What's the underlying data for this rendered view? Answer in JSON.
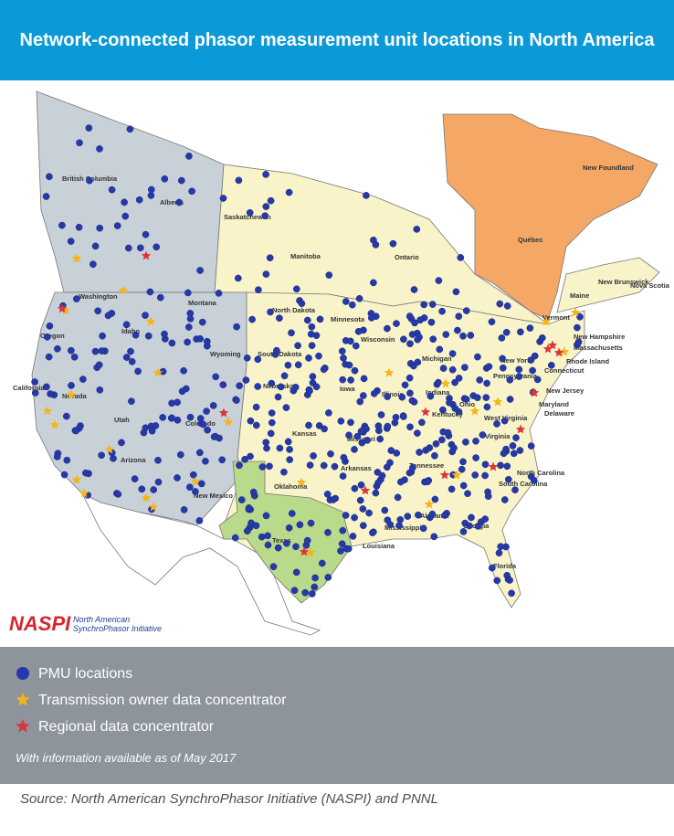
{
  "header": {
    "title": "Network-connected phasor measurement unit locations in North America"
  },
  "map": {
    "labels": [
      "British Columbia",
      "Alberta",
      "Saskatchewan",
      "Manitoba",
      "Ontario",
      "Québec",
      "New Foundland",
      "New Brunswick",
      "Nova Scotia",
      "Maine",
      "Washington",
      "Idaho",
      "Montana",
      "Oregon",
      "Wyoming",
      "North Dakota",
      "Minnesota",
      "Wisconsin",
      "South Dakota",
      "Michigan",
      "Nevada",
      "Utah",
      "Colorado",
      "Nebraska",
      "Iowa",
      "California",
      "Kansas",
      "Missouri",
      "Illinois",
      "Indiana",
      "Ohio",
      "Arizona",
      "New Mexico",
      "Oklahoma",
      "Arkansas",
      "Tennessee",
      "Kentucky",
      "Texas",
      "Louisiana",
      "Mississippi",
      "Alabama",
      "Georgia",
      "Florida",
      "North Carolina",
      "South Carolina",
      "Virginia",
      "West Virginia",
      "Pennsylvania",
      "New York",
      "Vermont",
      "New Hampshire",
      "Massachusetts",
      "Rhode Island",
      "Connecticut",
      "New Jersey",
      "Maryland",
      "Delaware"
    ]
  },
  "logo": {
    "name": "NASPI",
    "line1": "North American",
    "line2": "SynchroPhasor Initiative"
  },
  "legend": {
    "items": [
      "PMU locations",
      "Transmission owner data concentrator",
      "Regional data concentrator"
    ],
    "note": "With information available as of May 2017"
  },
  "source": "Source: North American SynchroPhasor Initiative (NASPI) and PNNL"
}
